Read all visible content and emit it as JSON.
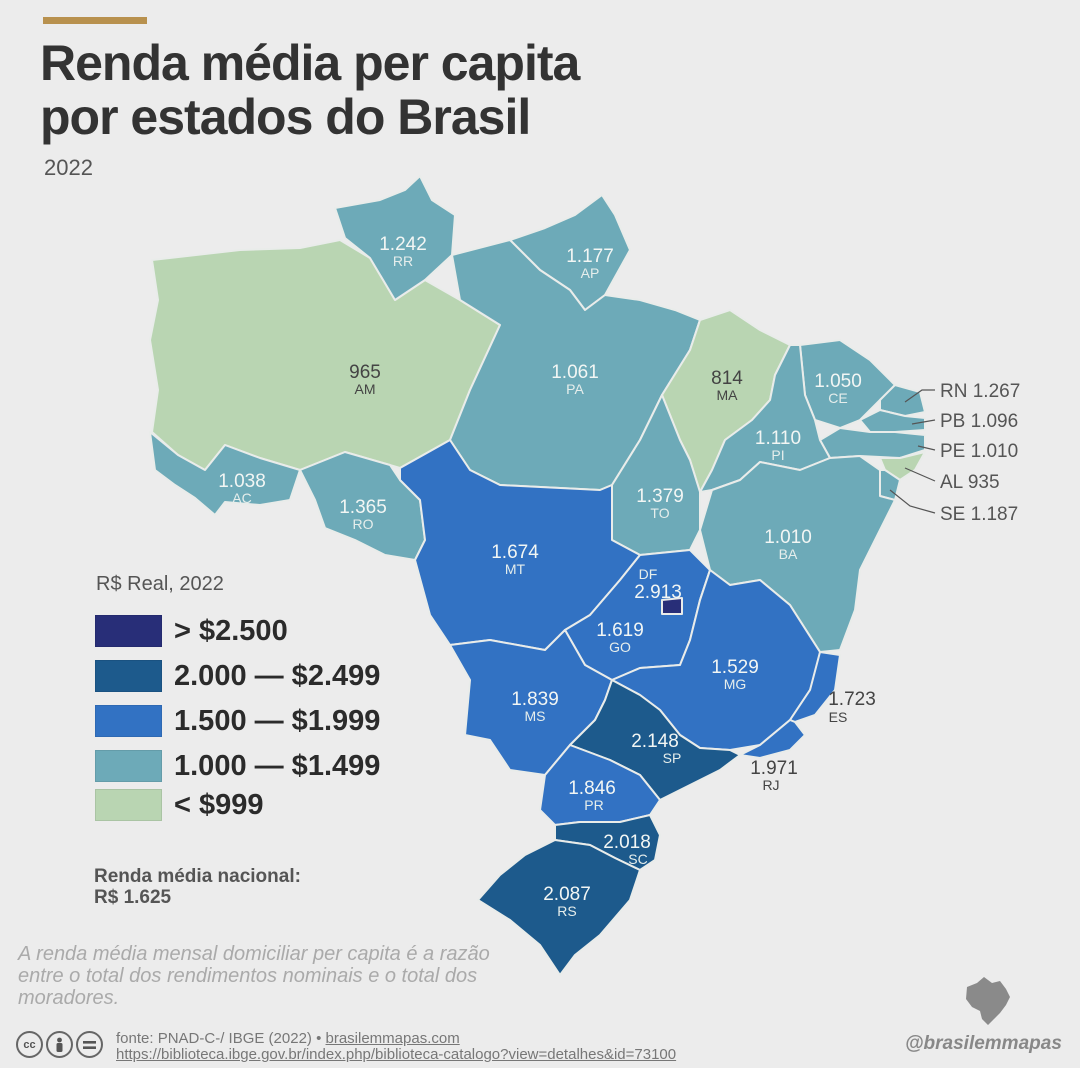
{
  "header": {
    "title_line1": "Renda média per capita",
    "title_line2": "por estados do Brasil",
    "year": "2022"
  },
  "colors": {
    "accent": "#b8914e",
    "class_gt_2500": "#282e78",
    "class_2000_2499": "#1d5a8c",
    "class_1500_1999": "#3272c3",
    "class_1000_1499": "#6daab8",
    "class_lt_999": "#b9d5b2"
  },
  "states": {
    "RR": {
      "value": "1.242",
      "abbr": "RR"
    },
    "AP": {
      "value": "1.177",
      "abbr": "AP"
    },
    "AM": {
      "value": "965",
      "abbr": "AM"
    },
    "PA": {
      "value": "1.061",
      "abbr": "PA"
    },
    "MA": {
      "value": "814",
      "abbr": "MA"
    },
    "CE": {
      "value": "1.050",
      "abbr": "CE"
    },
    "PI": {
      "value": "1.110",
      "abbr": "PI"
    },
    "AC": {
      "value": "1.038",
      "abbr": "AC"
    },
    "RO": {
      "value": "1.365",
      "abbr": "RO"
    },
    "TO": {
      "value": "1.379",
      "abbr": "TO"
    },
    "BA": {
      "value": "1.010",
      "abbr": "BA"
    },
    "MT": {
      "value": "1.674",
      "abbr": "MT"
    },
    "DF": {
      "value": "2.913",
      "abbr": "DF"
    },
    "GO": {
      "value": "1.619",
      "abbr": "GO"
    },
    "MG": {
      "value": "1.529",
      "abbr": "MG"
    },
    "MS": {
      "value": "1.839",
      "abbr": "MS"
    },
    "ES": {
      "value": "1.723",
      "abbr": "ES"
    },
    "SP": {
      "value": "2.148",
      "abbr": "SP"
    },
    "RJ": {
      "value": "1.971",
      "abbr": "RJ"
    },
    "PR": {
      "value": "1.846",
      "abbr": "PR"
    },
    "SC": {
      "value": "2.018",
      "abbr": "SC"
    },
    "RS": {
      "value": "2.087",
      "abbr": "RS"
    }
  },
  "callouts": {
    "RN": "RN 1.267",
    "PB": "PB 1.096",
    "PE": "PE 1.010",
    "AL": "AL 935",
    "SE": "SE 1.187"
  },
  "legend": {
    "title": "R$ Real, 2022",
    "items": [
      {
        "label": "> $2.500",
        "color": "#282e78"
      },
      {
        "label": "2.000 — $2.499",
        "color": "#1d5a8c"
      },
      {
        "label": "1.500 — $1.999",
        "color": "#3272c3"
      },
      {
        "label": "1.000 — $1.499",
        "color": "#6daab8"
      },
      {
        "label": "< $999",
        "color": "#b9d5b2"
      }
    ]
  },
  "national": {
    "label": "Renda média nacional:",
    "value": "R$ 1.625"
  },
  "note": "A renda média mensal domiciliar per capita é a razão entre o total dos rendimentos nominais e o total dos moradores.",
  "footer": {
    "source_text": "fonte: PNAD-C-/ IBGE (2022) • ",
    "source_site": "brasilemmapas.com",
    "source_url": "https://biblioteca.ibge.gov.br/index.php/biblioteca-catalogo?view=detalhes&id=73100",
    "handle": "@brasilemmapas",
    "cc_icons": [
      "cc-icon",
      "by-icon",
      "nd-icon"
    ]
  }
}
